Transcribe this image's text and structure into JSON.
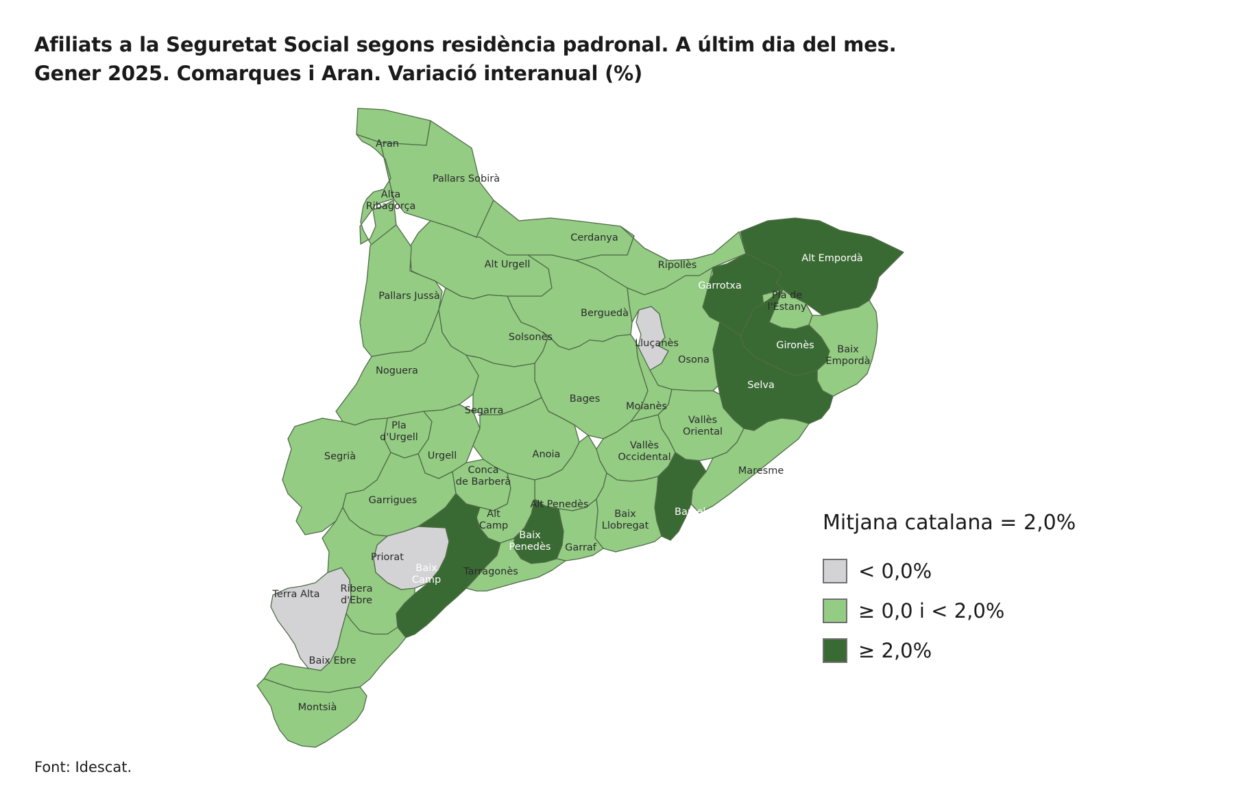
{
  "title": {
    "line1": "Afiliats a la Seguretat Social segons residència padronal. A últim dia del mes.",
    "line2": "Gener 2025. Comarques i Aran. Variació interanual (%)"
  },
  "colors": {
    "low": "#d3d3d5",
    "mid": "#94cc84",
    "high": "#3a6a33",
    "border": "#4f6a46"
  },
  "legend": {
    "title": "Mitjana catalana = 2,0%",
    "items": [
      {
        "label": "< 0,0%",
        "class": "low"
      },
      {
        "label": "≥ 0,0 i < 2,0%",
        "class": "mid"
      },
      {
        "label": "≥ 2,0%",
        "class": "high"
      }
    ]
  },
  "regions": {
    "aran": {
      "label": "Aran",
      "class": "mid"
    },
    "pallars_sobira": {
      "label": "Pallars Sobirà",
      "class": "mid"
    },
    "alta_ribagorca": {
      "label": [
        "Alta",
        "Ribagorça"
      ],
      "class": "mid"
    },
    "cerdanya": {
      "label": "Cerdanya",
      "class": "mid"
    },
    "alt_emporda": {
      "label": "Alt Empordà",
      "class": "high"
    },
    "alt_urgell": {
      "label": "Alt Urgell",
      "class": "mid"
    },
    "ripolles": {
      "label": "Ripollès",
      "class": "mid"
    },
    "garrotxa": {
      "label": "Garrotxa",
      "class": "high"
    },
    "pla_estany": {
      "label": [
        "Pla de",
        "l'Estany"
      ],
      "class": "mid"
    },
    "pallars_jussa": {
      "label": "Pallars Jussà",
      "class": "mid"
    },
    "bergueda": {
      "label": "Berguedà",
      "class": "mid"
    },
    "solsones": {
      "label": "Solsonès",
      "class": "mid"
    },
    "llucanes": {
      "label": "Lluçanès",
      "class": "low"
    },
    "girones": {
      "label": "Gironès",
      "class": "high"
    },
    "osona": {
      "label": "Osona",
      "class": "mid"
    },
    "baix_emporda": {
      "label": [
        "Baix",
        "Empordà"
      ],
      "class": "mid"
    },
    "noguera": {
      "label": "Noguera",
      "class": "mid"
    },
    "selva": {
      "label": "Selva",
      "class": "high"
    },
    "bages": {
      "label": "Bages",
      "class": "mid"
    },
    "segarra": {
      "label": "Segarra",
      "class": "mid"
    },
    "moianes": {
      "label": "Moianès",
      "class": "mid"
    },
    "valles_oriental": {
      "label": [
        "Vallès",
        "Oriental"
      ],
      "class": "mid"
    },
    "pla_urgell": {
      "label": [
        "Pla",
        "d'Urgell"
      ],
      "class": "mid"
    },
    "segria": {
      "label": "Segrià",
      "class": "mid"
    },
    "urgell": {
      "label": "Urgell",
      "class": "mid"
    },
    "anoia": {
      "label": "Anoia",
      "class": "mid"
    },
    "valles_occidental": {
      "label": [
        "Vallès",
        "Occidental"
      ],
      "class": "mid"
    },
    "maresme": {
      "label": "Maresme",
      "class": "mid"
    },
    "conca_barbera": {
      "label": [
        "Conca",
        "de Barberà"
      ],
      "class": "mid"
    },
    "garrigues": {
      "label": "Garrigues",
      "class": "mid"
    },
    "alt_penedes": {
      "label": "Alt Penedès",
      "class": "mid"
    },
    "barcelones": {
      "label": "Barcelonès",
      "class": "high"
    },
    "alt_camp": {
      "label": [
        "Alt",
        "Camp"
      ],
      "class": "mid"
    },
    "baix_llobregat": {
      "label": [
        "Baix",
        "Llobregat"
      ],
      "class": "mid"
    },
    "priorat": {
      "label": "Priorat",
      "class": "low"
    },
    "baix_penedes": {
      "label": [
        "Baix",
        "Penedès"
      ],
      "class": "high"
    },
    "garraf": {
      "label": "Garraf",
      "class": "mid"
    },
    "baix_camp": {
      "label": [
        "Baix",
        "Camp"
      ],
      "class": "high"
    },
    "tarragones": {
      "label": "Tarragonès",
      "class": "mid"
    },
    "terra_alta": {
      "label": "Terra Alta",
      "class": "low"
    },
    "ribera_ebre": {
      "label": [
        "Ribera",
        "d'Ebre"
      ],
      "class": "mid"
    },
    "baix_ebre": {
      "label": "Baix Ebre",
      "class": "mid"
    },
    "montsia": {
      "label": "Montsià",
      "class": "mid"
    }
  },
  "source": "Font: Idescat."
}
